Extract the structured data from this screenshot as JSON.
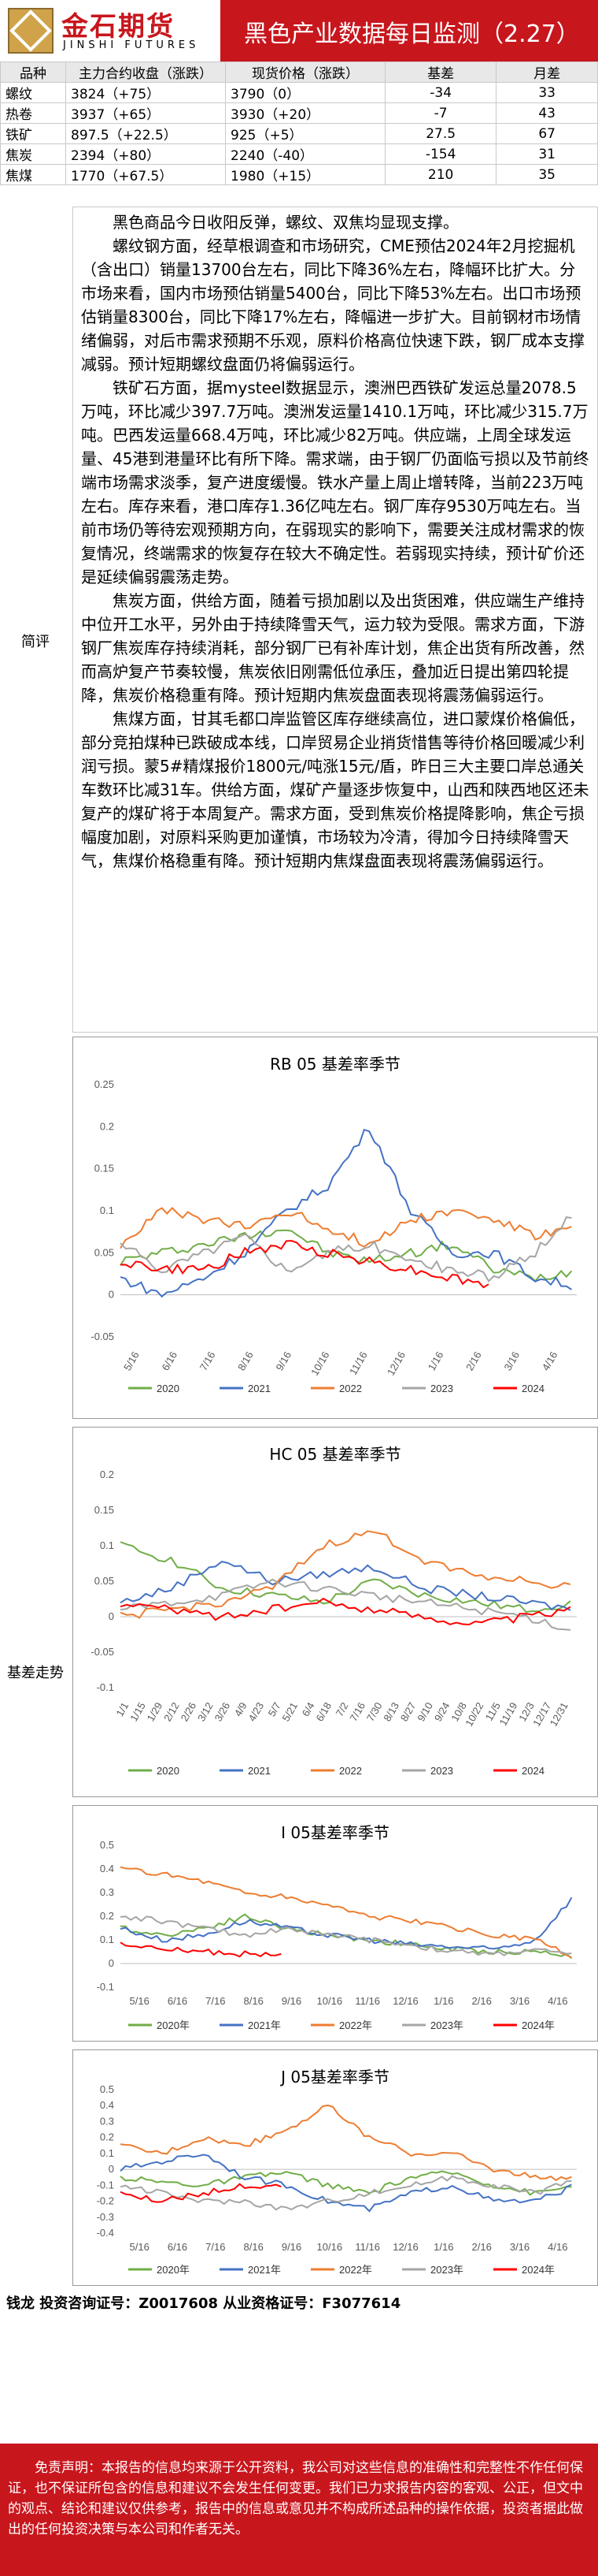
{
  "header": {
    "logo_cn": "金石期货",
    "logo_en": "JINSHI FUTURES",
    "title": "黑色产业数据每日监测（2.27）"
  },
  "table": {
    "headers": [
      "品种",
      "主力合约收盘（涨跌）",
      "现货价格（涨跌）",
      "基差",
      "月差"
    ],
    "rows": [
      [
        "螺纹",
        "3824（+75）",
        "3790（0）",
        "-34",
        "33"
      ],
      [
        "热卷",
        "3937（+65）",
        "3930（+20）",
        "-7",
        "43"
      ],
      [
        "铁矿",
        "897.5（+22.5）",
        "925（+5）",
        "27.5",
        "67"
      ],
      [
        "焦炭",
        "2394（+80）",
        "2240（-40）",
        "-154",
        "31"
      ],
      [
        "焦煤",
        "1770（+67.5）",
        "1980（+15）",
        "210",
        "35"
      ]
    ]
  },
  "summary": {
    "label": "简评",
    "paragraphs": [
      "黑色商品今日收阳反弹，螺纹、双焦均显现支撑。",
      "螺纹钢方面，经草根调查和市场研究，CME预估2024年2月挖掘机（含出口）销量13700台左右，同比下降36%左右，降幅环比扩大。分市场来看，国内市场预估销量5400台，同比下降53%左右。出口市场预估销量8300台，同比下降17%左右，降幅进一步扩大。目前钢材市场情绪偏弱，对后市需求预期不乐观，原料价格高位快速下跌，钢厂成本支撑减弱。预计短期螺纹盘面仍将偏弱运行。",
      "铁矿石方面，据mysteel数据显示，澳洲巴西铁矿发运总量2078.5万吨，环比减少397.7万吨。澳洲发运量1410.1万吨，环比减少315.7万吨。巴西发运量668.4万吨，环比减少82万吨。供应端，上周全球发运量、45港到港量环比有所下降。需求端，由于钢厂仍面临亏损以及节前终端市场需求淡季，复产进度缓慢。铁水产量上周止增转降，当前223万吨左右。库存来看，港口库存1.36亿吨左右。钢厂库存9530万吨左右。当前市场仍等待宏观预期方向，在弱现实的影响下，需要关注成材需求的恢复情况，终端需求的恢复存在较大不确定性。若弱现实持续，预计矿价还是延续偏弱震荡走势。",
      "焦炭方面，供给方面，随着亏损加剧以及出货困难，供应端生产维持中位开工水平，另外由于持续降雪天气，运力较为受限。需求方面，下游钢厂焦炭库存持续消耗，部分钢厂已有补库计划，焦企出货有所改善，然而高炉复产节奏较慢，焦炭依旧刚需低位承压，叠加近日提出第四轮提降，焦炭价格稳重有降。预计短期内焦炭盘面表现将震荡偏弱运行。",
      "焦煤方面，甘其毛都口岸监管区库存继续高位，进口蒙煤价格偏低，部分竞拍煤种已跌破成本线，口岸贸易企业捎货惜售等待价格回暖减少利润亏损。蒙5#精煤报价1800元/吨涨15元/盾，昨日三大主要口岸总通关车数环比减31车。供给方面，煤矿产量逐步恢复中，山西和陕西地区还未复产的煤矿将于本周复产。需求方面，受到焦炭价格提降影响，焦企亏损幅度加剧，对原料采购更加谨慎，市场较为冷清，得加今日持续降雪天气，焦煤价格稳重有降。预计短期内焦煤盘面表现将震荡偏弱运行。"
    ]
  },
  "basis_label": "基差走势",
  "chart_data": [
    {
      "type": "line",
      "title": "RB 05 基差率季节",
      "x_ticks": [
        "5/16",
        "6/16",
        "7/16",
        "8/16",
        "9/16",
        "10/16",
        "11/16",
        "12/16",
        "1/16",
        "2/16",
        "3/16",
        "4/16"
      ],
      "y_ticks": [
        "-0.05",
        "0",
        "0.05",
        "0.1",
        "0.15",
        "0.2",
        "0.25"
      ],
      "ylim": [
        -0.05,
        0.25
      ],
      "legend": [
        "2020",
        "2021",
        "2022",
        "2023",
        "2024"
      ],
      "colors": [
        "#70ad47",
        "#4472c4",
        "#ed7d31",
        "#a5a5a5",
        "#ff0000"
      ],
      "series": [
        {
          "name": "2020",
          "values": [
            0.04,
            0.05,
            0.06,
            0.07,
            0.08,
            0.05,
            0.04,
            0.05,
            0.06,
            0.03,
            0.02,
            0.03
          ]
        },
        {
          "name": "2021",
          "values": [
            0.02,
            0.0,
            0.02,
            0.05,
            0.1,
            0.13,
            0.2,
            0.1,
            0.05,
            0.05,
            0.02,
            0.01
          ]
        },
        {
          "name": "2022",
          "values": [
            0.06,
            0.1,
            0.09,
            0.08,
            0.1,
            0.08,
            0.06,
            0.09,
            0.1,
            0.09,
            0.07,
            0.08
          ]
        },
        {
          "name": "2023",
          "values": [
            0.06,
            0.03,
            0.05,
            0.07,
            0.03,
            0.05,
            0.06,
            0.04,
            0.03,
            0.02,
            0.05,
            0.1
          ]
        },
        {
          "name": "2024",
          "values": [
            0.04,
            0.03,
            0.03,
            0.05,
            0.06,
            0.05,
            0.04,
            0.03,
            0.02,
            0.01,
            null,
            null
          ]
        }
      ]
    },
    {
      "type": "line",
      "title": "HC 05 基差率季节",
      "x_ticks": [
        "1/1",
        "1/15",
        "1/29",
        "2/12",
        "2/26",
        "3/12",
        "3/26",
        "4/9",
        "4/23",
        "5/7",
        "5/21",
        "6/4",
        "6/18",
        "7/2",
        "7/16",
        "7/30",
        "8/13",
        "8/27",
        "9/10",
        "9/24",
        "10/8",
        "10/22",
        "11/5",
        "11/19",
        "12/3",
        "12/17",
        "12/31"
      ],
      "y_ticks": [
        "-0.1",
        "-0.05",
        "0",
        "0.05",
        "0.1",
        "0.15",
        "0.2"
      ],
      "ylim": [
        -0.1,
        0.2
      ],
      "legend": [
        "2020",
        "2021",
        "2022",
        "2023",
        "2024"
      ],
      "colors": [
        "#70ad47",
        "#4472c4",
        "#ed7d31",
        "#a5a5a5",
        "#ff0000"
      ],
      "series": [
        {
          "name": "2020",
          "values": [
            0.1,
            0.08,
            0.04,
            0.03,
            0.02,
            0.05,
            0.03,
            0.02,
            0.01,
            0.02
          ]
        },
        {
          "name": "2021",
          "values": [
            0.02,
            0.04,
            0.08,
            0.05,
            0.06,
            0.07,
            0.04,
            0.03,
            0.02,
            0.01
          ]
        },
        {
          "name": "2022",
          "values": [
            0.0,
            0.01,
            0.02,
            0.04,
            0.1,
            0.12,
            0.08,
            0.06,
            0.05,
            0.04
          ]
        },
        {
          "name": "2023",
          "values": [
            0.01,
            0.02,
            0.03,
            0.05,
            0.04,
            0.03,
            0.02,
            0.01,
            0.0,
            -0.02
          ]
        },
        {
          "name": "2024",
          "values": [
            0.02,
            0.01,
            0.0,
            0.01,
            0.02,
            0.01,
            0.0,
            -0.01,
            0.0,
            0.01
          ]
        }
      ]
    },
    {
      "type": "line",
      "title": "I 05基差率季节",
      "x_ticks": [
        "5/16",
        "6/16",
        "7/16",
        "8/16",
        "9/16",
        "10/16",
        "11/16",
        "12/16",
        "1/16",
        "2/16",
        "3/16",
        "4/16"
      ],
      "y_ticks": [
        "-0.1",
        "0",
        "0.1",
        "0.2",
        "0.3",
        "0.4",
        "0.5"
      ],
      "ylim": [
        -0.1,
        0.5
      ],
      "legend": [
        "2020年",
        "2021年",
        "2022年",
        "2023年",
        "2024年"
      ],
      "colors": [
        "#70ad47",
        "#4472c4",
        "#ed7d31",
        "#a5a5a5",
        "#ff0000"
      ],
      "series": [
        {
          "name": "2020年",
          "values": [
            0.15,
            0.12,
            0.15,
            0.2,
            0.15,
            0.12,
            0.1,
            0.08,
            0.06,
            0.05,
            0.05,
            0.03
          ]
        },
        {
          "name": "2021年",
          "values": [
            0.15,
            0.1,
            0.12,
            0.18,
            0.15,
            0.12,
            0.1,
            0.08,
            0.07,
            0.06,
            0.1,
            0.3
          ]
        },
        {
          "name": "2022年",
          "values": [
            0.4,
            0.38,
            0.35,
            0.3,
            0.28,
            0.25,
            0.2,
            0.18,
            0.15,
            0.12,
            0.1,
            0.02
          ]
        },
        {
          "name": "2023年",
          "values": [
            0.2,
            0.18,
            0.15,
            0.12,
            0.15,
            0.12,
            0.1,
            0.08,
            0.05,
            0.04,
            0.06,
            0.03
          ]
        },
        {
          "name": "2024年",
          "values": [
            0.08,
            0.06,
            0.05,
            0.04,
            0.03,
            null,
            null,
            null,
            null,
            null,
            null,
            null
          ]
        }
      ]
    },
    {
      "type": "line",
      "title": "J 05基差率季节",
      "x_ticks": [
        "5/16",
        "6/16",
        "7/16",
        "8/16",
        "9/16",
        "10/16",
        "11/16",
        "12/16",
        "1/16",
        "2/16",
        "3/16",
        "4/16"
      ],
      "y_ticks": [
        "-0.4",
        "-0.3",
        "-0.2",
        "-0.1",
        "0",
        "0.1",
        "0.2",
        "0.3",
        "0.4",
        "0.5"
      ],
      "ylim": [
        -0.4,
        0.5
      ],
      "legend": [
        "2020年",
        "2021年",
        "2022年",
        "2023年",
        "2024年"
      ],
      "colors": [
        "#70ad47",
        "#4472c4",
        "#ed7d31",
        "#a5a5a5",
        "#ff0000"
      ],
      "series": [
        {
          "name": "2020年",
          "values": [
            -0.05,
            -0.08,
            -0.1,
            -0.05,
            -0.02,
            -0.1,
            -0.15,
            -0.05,
            -0.02,
            -0.1,
            -0.15,
            -0.1
          ]
        },
        {
          "name": "2021年",
          "values": [
            0.0,
            0.05,
            0.1,
            -0.05,
            -0.1,
            -0.2,
            -0.25,
            -0.15,
            -0.1,
            -0.2,
            -0.2,
            -0.1
          ]
        },
        {
          "name": "2022年",
          "values": [
            0.15,
            0.1,
            0.2,
            0.15,
            0.25,
            0.4,
            0.2,
            0.1,
            0.1,
            0.0,
            -0.05,
            -0.05
          ]
        },
        {
          "name": "2023年",
          "values": [
            -0.1,
            -0.15,
            -0.2,
            -0.2,
            -0.25,
            -0.2,
            -0.15,
            -0.1,
            -0.05,
            -0.1,
            -0.15,
            -0.05
          ]
        },
        {
          "name": "2024年",
          "values": [
            -0.15,
            -0.2,
            -0.15,
            -0.1,
            -0.1,
            null,
            null,
            null,
            null,
            null,
            null,
            null
          ]
        }
      ]
    }
  ],
  "footer": {
    "analyst": "钱龙  投资咨询证号：Z0017608  从业资格证号：F3077614",
    "disclaimer": "免责声明：本报告的信息均来源于公开资料，我公司对这些信息的准确性和完整性不作任何保证，也不保证所包含的信息和建议不会发生任何变更。我们已力求报告内容的客观、公正，但文中的观点、结论和建议仅供参考，报告中的信息或意见并不构成所述品种的操作依据，投资者据此做出的任何投资决策与本公司和作者无关。"
  }
}
